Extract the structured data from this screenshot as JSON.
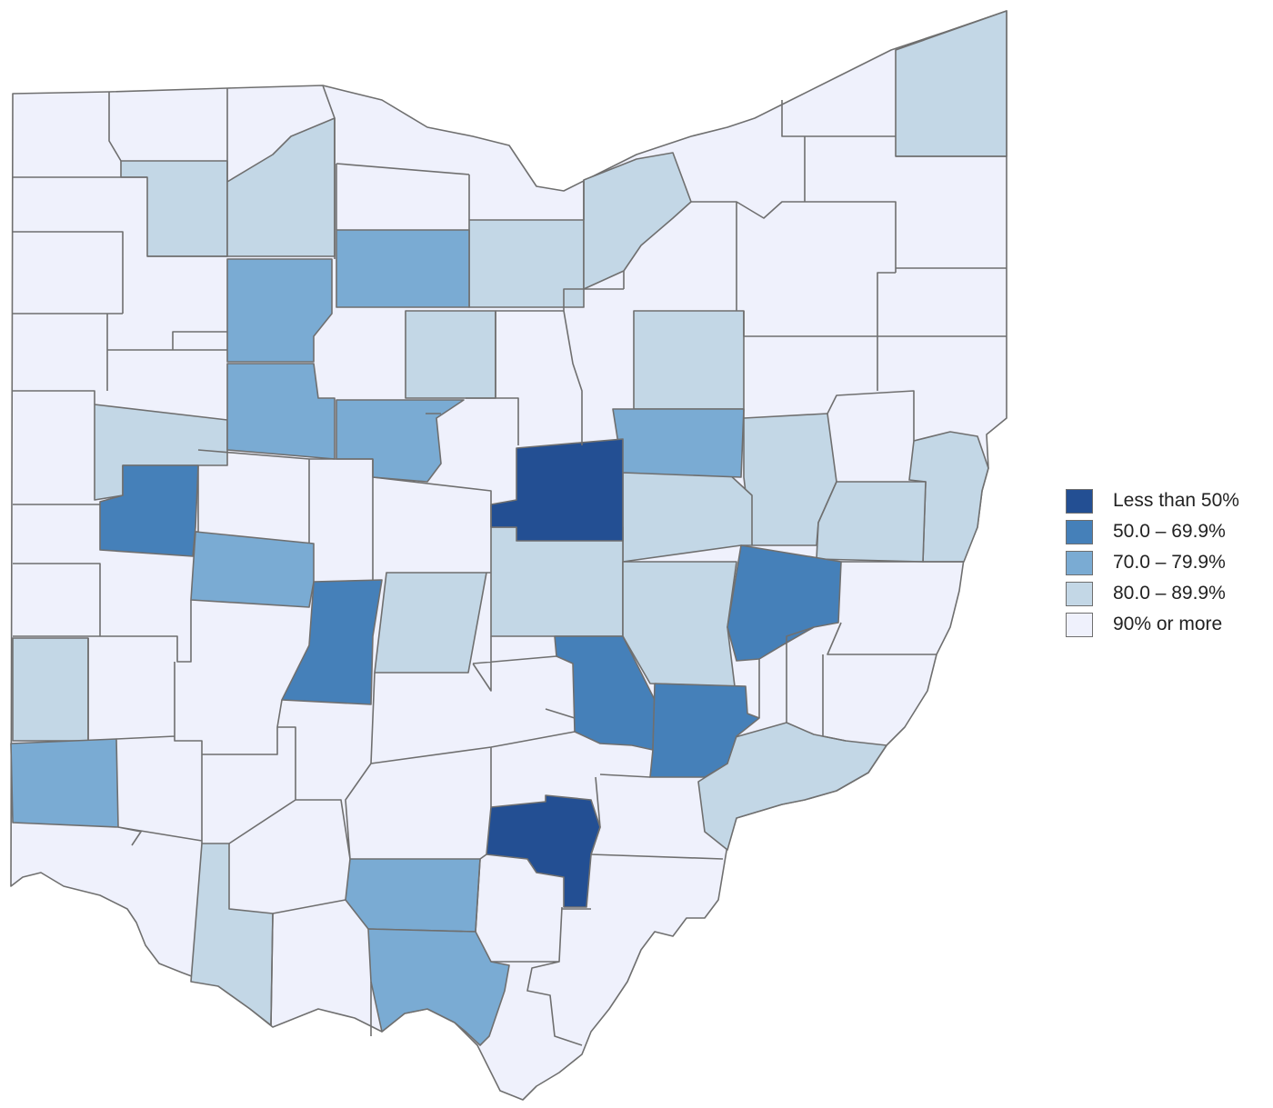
{
  "legend": {
    "items": [
      {
        "label": "Less than 50%",
        "color": "#234f93"
      },
      {
        "label": "50.0 – 69.9%",
        "color": "#4580b9"
      },
      {
        "label": "70.0 – 79.9%",
        "color": "#7aabd3"
      },
      {
        "label": "80.0 – 89.9%",
        "color": "#c3d7e6"
      },
      {
        "label": "90% or more",
        "color": "#eff1fc"
      }
    ]
  }
}
